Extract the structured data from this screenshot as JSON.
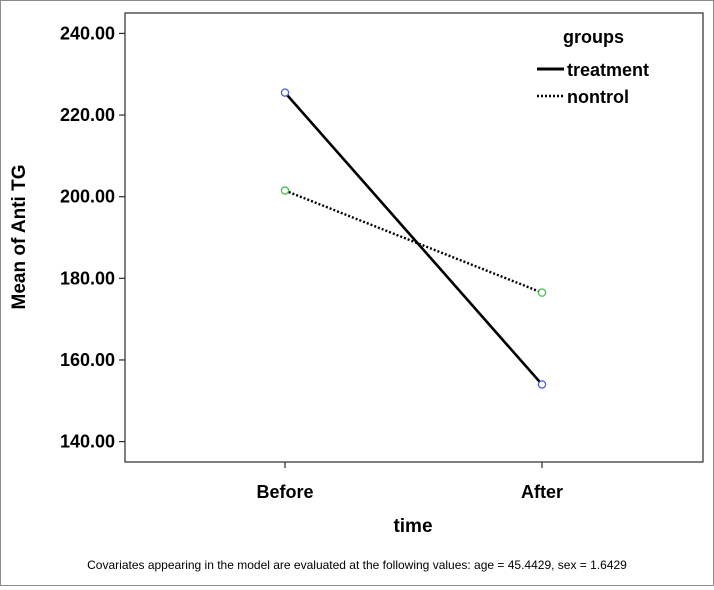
{
  "chart_data": {
    "type": "line",
    "title": "",
    "xlabel": "time",
    "ylabel": "Mean of Anti TG",
    "categories": [
      "Before",
      "After"
    ],
    "ylim": [
      135,
      245
    ],
    "yticks": [
      140,
      160,
      180,
      200,
      220,
      240
    ],
    "ytick_labels": [
      "140.00",
      "160.00",
      "180.00",
      "200.00",
      "220.00",
      "240.00"
    ],
    "grid": false,
    "legend": {
      "title": "groups",
      "placement": "top-right"
    },
    "series": [
      {
        "name": "treatment",
        "values": [
          225.5,
          154.0
        ],
        "line_style": "solid",
        "line_color": "#000000",
        "marker_color": "#4a5fd6"
      },
      {
        "name": "nontrol",
        "values": [
          201.5,
          176.5
        ],
        "line_style": "dotted",
        "line_color": "#000000",
        "marker_color": "#4fbf4f"
      }
    ],
    "footnote": "Covariates appearing in the model are evaluated at the following values: age = 45.4429, sex = 1.6429"
  }
}
